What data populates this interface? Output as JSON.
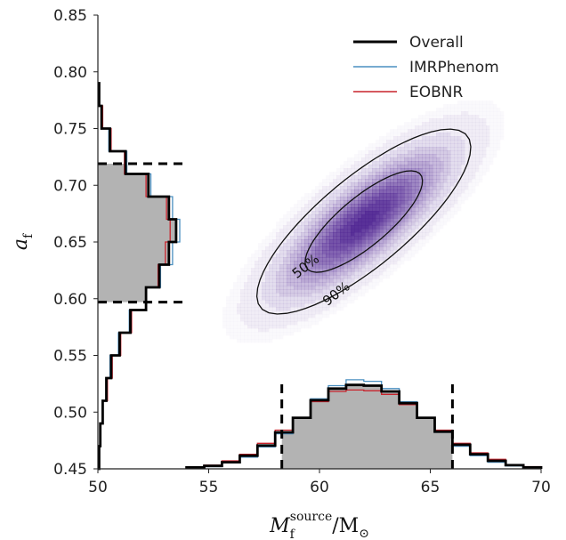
{
  "chart_data": {
    "type": "histogram-kde",
    "xlabel": {
      "base": "M",
      "sub": "f",
      "sup": "source",
      "unit": "/M",
      "unit_sub": "⊙"
    },
    "ylabel": {
      "base": "a",
      "sub": "f"
    },
    "xlim": [
      50,
      70
    ],
    "ylim": [
      0.45,
      0.85
    ],
    "xticks": [
      50,
      55,
      60,
      65,
      70
    ],
    "yticks": [
      0.45,
      0.5,
      0.55,
      0.6,
      0.65,
      0.7,
      0.75,
      0.8,
      0.85
    ],
    "legend": {
      "placement": "top-right",
      "entries": [
        {
          "label": "Overall",
          "color": "#000000"
        },
        {
          "label": "IMRPhenom",
          "color": "#4a8fc0"
        },
        {
          "label": "EOBNR",
          "color": "#c8232c"
        }
      ]
    },
    "x_histogram": {
      "bin_edges": [
        54.0,
        54.8,
        55.6,
        56.4,
        57.2,
        58.0,
        58.8,
        59.6,
        60.4,
        61.2,
        62.0,
        62.8,
        63.6,
        64.4,
        65.2,
        66.0,
        66.8,
        67.6,
        68.4,
        69.2,
        70.0
      ],
      "series": [
        {
          "name": "Overall",
          "values": [
            0.2,
            0.4,
            0.9,
            1.8,
            3.2,
            5.0,
            7.0,
            9.4,
            11.0,
            11.5,
            11.4,
            10.6,
            9.0,
            7.0,
            5.1,
            3.3,
            2.0,
            1.1,
            0.5,
            0.2
          ]
        },
        {
          "name": "IMRPhenom",
          "values": [
            0.2,
            0.3,
            0.8,
            1.6,
            3.0,
            4.8,
            7.0,
            9.6,
            11.4,
            12.2,
            12.0,
            11.0,
            9.2,
            7.0,
            5.0,
            3.1,
            1.8,
            0.9,
            0.4,
            0.2
          ]
        },
        {
          "name": "EOBNR",
          "values": [
            0.2,
            0.5,
            1.1,
            2.0,
            3.5,
            5.3,
            7.0,
            9.2,
            10.6,
            10.8,
            10.7,
            10.2,
            8.8,
            7.0,
            5.3,
            3.5,
            2.2,
            1.3,
            0.6,
            0.3
          ]
        }
      ],
      "interval_90": [
        58.3,
        66.0
      ]
    },
    "y_histogram": {
      "bin_edges": [
        0.45,
        0.47,
        0.49,
        0.51,
        0.53,
        0.55,
        0.57,
        0.59,
        0.61,
        0.63,
        0.65,
        0.67,
        0.69,
        0.71,
        0.73,
        0.75,
        0.77,
        0.79
      ],
      "series": [
        {
          "name": "Overall",
          "values": [
            0.05,
            0.1,
            0.2,
            0.35,
            0.55,
            0.9,
            1.35,
            2.0,
            2.55,
            2.95,
            3.25,
            2.95,
            2.1,
            1.15,
            0.5,
            0.15,
            0.05
          ]
        },
        {
          "name": "IMRPhenom",
          "values": [
            0.05,
            0.1,
            0.2,
            0.35,
            0.5,
            0.85,
            1.3,
            2.0,
            2.6,
            3.1,
            3.4,
            3.1,
            2.2,
            1.2,
            0.45,
            0.15,
            0.05
          ]
        },
        {
          "name": "EOBNR",
          "values": [
            0.05,
            0.1,
            0.2,
            0.4,
            0.6,
            0.95,
            1.4,
            2.0,
            2.5,
            2.8,
            3.0,
            2.85,
            2.0,
            1.1,
            0.55,
            0.2,
            0.05
          ]
        }
      ],
      "interval_90": [
        0.597,
        0.719
      ]
    },
    "joint_kde": {
      "mean": [
        62.0,
        0.668
      ],
      "sd": [
        2.25,
        0.038
      ],
      "rho": 0.8,
      "color": "#4b1f8f",
      "contours": [
        {
          "label": "50%",
          "level": 1.386
        },
        {
          "label": "90%",
          "level": 4.605
        }
      ]
    }
  }
}
